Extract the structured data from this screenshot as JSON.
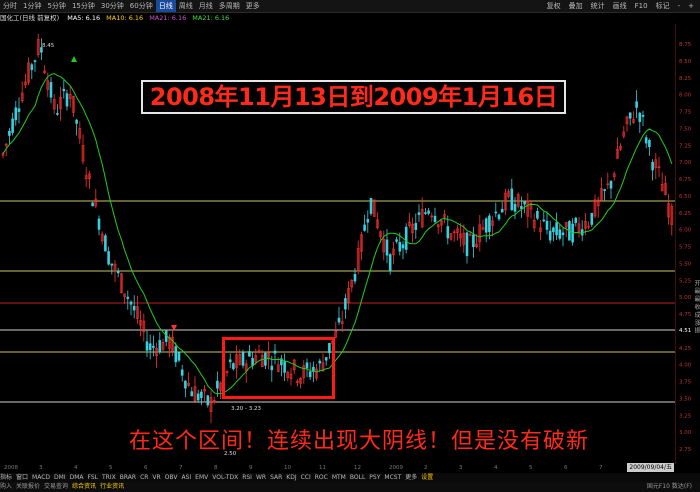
{
  "toolbar": {
    "periods": [
      "分时",
      "1分钟",
      "5分钟",
      "15分钟",
      "30分钟",
      "60分钟",
      "日线",
      "周线",
      "月线",
      "多周期",
      "更多"
    ],
    "active_period": "日线",
    "right_items": [
      "复权",
      "叠加",
      "统计",
      "画线",
      "F10",
      "标记",
      "-",
      "+"
    ]
  },
  "ma_bar": {
    "title": "国化工(日线 前复权)",
    "items": [
      {
        "label": "MA5: 6.16",
        "color": "#ffffff"
      },
      {
        "label": "MA10: 6.16",
        "color": "#ffd200"
      },
      {
        "label": "MA21: 6.16",
        "color": "#d050d0"
      },
      {
        "label": "MA21: 6.16",
        "color": "#40e040"
      }
    ]
  },
  "price_axis": [
    "8.75",
    "8.50",
    "8.25",
    "8.00",
    "7.75",
    "7.50",
    "7.25",
    "7.00",
    "6.75",
    "6.50",
    "6.25",
    "6.00",
    "5.75",
    "5.50",
    "5.25",
    "5.00",
    "4.75",
    "4.51",
    "4.25",
    "4.00",
    "3.75",
    "3.50",
    "3.25",
    "3.00",
    "2.75"
  ],
  "annotations": {
    "high_label": "8.45",
    "low_label_1": "3.20 - 3.23",
    "low_label_2": "2.50"
  },
  "title_text": "2008年11月13日到2009年1月16日",
  "caption_text": "在这个区间！连续出现大阴线！但是没有破新",
  "right_panel_text": "开 最 最 收 成 涨 振",
  "dates": [
    "2008",
    "3",
    "4",
    "5",
    "6",
    "7",
    "8",
    "9",
    "10",
    "11",
    "12",
    "2009",
    "2",
    "3",
    "4",
    "5",
    "6",
    "7",
    "8"
  ],
  "date_tag": "2009/09/04/五",
  "indicators": [
    "指标",
    "窗口",
    "MACD",
    "DMI",
    "DMA",
    "FSL",
    "TRIX",
    "BRAR",
    "CR",
    "VR",
    "OBV",
    "ASI",
    "EMV",
    "VOL-TDX",
    "RSI",
    "WR",
    "SAR",
    "KDJ",
    "CCI",
    "ROC",
    "MTM",
    "BOLL",
    "PSY",
    "MCST",
    "更多",
    "设置"
  ],
  "active_indicator": "设置",
  "bottom_bar": {
    "items": [
      "购入",
      "关联报价",
      "交易查询",
      "综合资讯",
      "行业资讯"
    ],
    "highlighted": [
      "综合资讯",
      "行业资讯"
    ],
    "right_info": "国元F10 数达(F)"
  },
  "colors": {
    "up": "#ff3030",
    "down": "#36d0e0",
    "ma": "#22cc22",
    "hline_yellow": "#c8c860",
    "hline_white": "#d0d0d0",
    "hline_red": "#c02020"
  }
}
